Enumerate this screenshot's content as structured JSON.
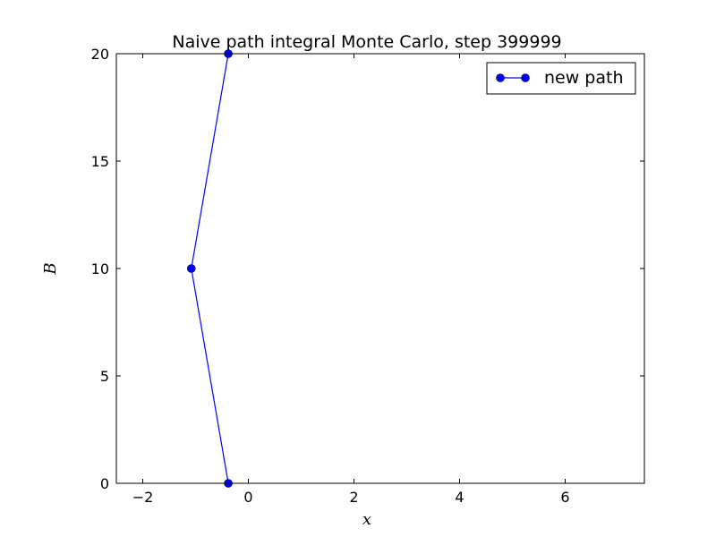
{
  "chart_data": {
    "type": "line",
    "title": "Naive path integral Monte Carlo, step 399999",
    "xlabel": "x",
    "ylabel": "B",
    "xlim": [
      -2.5,
      7.5
    ],
    "ylim": [
      0,
      20
    ],
    "x_ticks": [
      -2,
      0,
      2,
      4,
      6
    ],
    "y_ticks": [
      0,
      5,
      10,
      15,
      20
    ],
    "x_tick_labels": [
      "−2",
      "0",
      "2",
      "4",
      "6"
    ],
    "y_tick_labels": [
      "0",
      "5",
      "10",
      "15",
      "20"
    ],
    "grid": false,
    "legend_position": "top-right",
    "series": [
      {
        "name": "new path",
        "color": "#0000ff",
        "marker": "circle",
        "x": [
          -0.38,
          -1.08,
          -0.38
        ],
        "y": [
          0,
          10,
          20
        ]
      }
    ]
  }
}
